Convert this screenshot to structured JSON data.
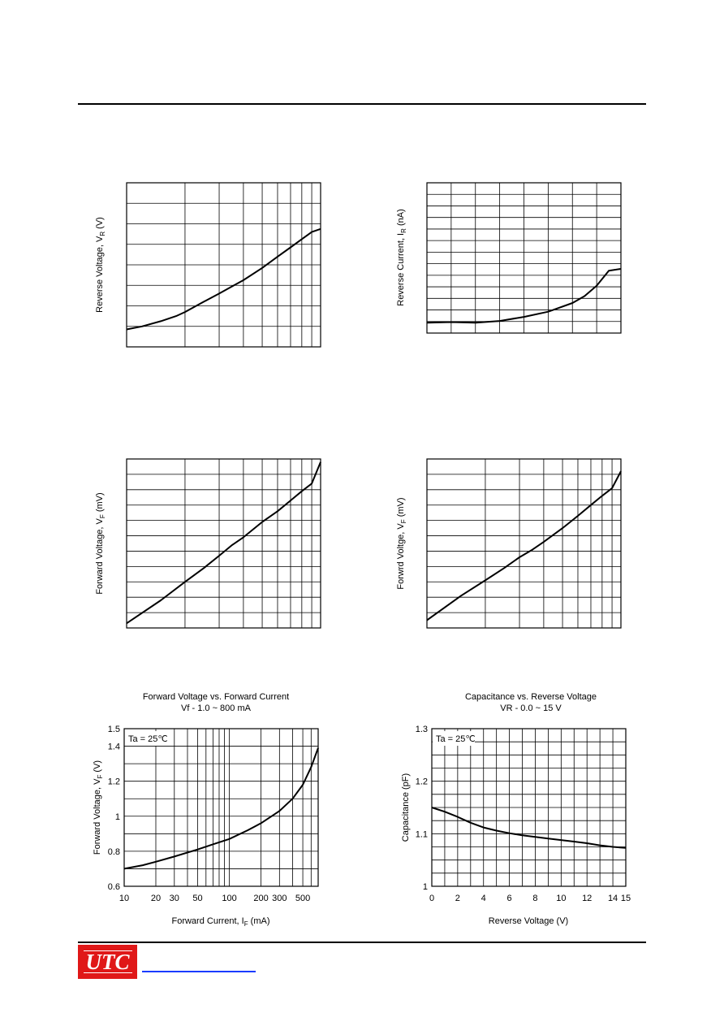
{
  "logo": {
    "text": "UTC"
  },
  "chart_data": [
    {
      "type": "line",
      "title": "",
      "subtitle": "",
      "xlabel": "",
      "ylabel": "Reverse Voltage, VR (V)",
      "ylabel_main": "Reverse Voltage, V",
      "ylabel_sub": "R",
      "ylabel_unit": " (V)",
      "xscale": "log",
      "xlim": [
        1,
        10
      ],
      "ylim": [
        0,
        8
      ],
      "xgrid": [
        1,
        2,
        3,
        4,
        5,
        6,
        7,
        8,
        9,
        10
      ],
      "ygrid": [
        0,
        1,
        2,
        3,
        4,
        5,
        6,
        7,
        8
      ],
      "grid": true,
      "series": [
        {
          "x": [
            1,
            1.2,
            1.5,
            1.8,
            2,
            2.5,
            3,
            3.5,
            4,
            5,
            6,
            7,
            8,
            9,
            10
          ],
          "y": [
            0.85,
            1.0,
            1.25,
            1.5,
            1.7,
            2.2,
            2.6,
            2.95,
            3.25,
            3.85,
            4.4,
            4.85,
            5.25,
            5.6,
            5.75
          ]
        }
      ]
    },
    {
      "type": "line",
      "title": "",
      "subtitle": "",
      "xlabel": "",
      "ylabel": "Reverse Current, IR (nA)",
      "ylabel_main": "Reverse Current, I",
      "ylabel_sub": "R",
      "ylabel_unit": " (nA)",
      "xscale": "linear",
      "xlim": [
        0,
        8
      ],
      "ylim": [
        0,
        13
      ],
      "xgrid": [
        0,
        1,
        2,
        3,
        4,
        5,
        6,
        7,
        8
      ],
      "ygrid": [
        0,
        1,
        2,
        3,
        4,
        5,
        6,
        7,
        8,
        9,
        10,
        11,
        12,
        13
      ],
      "grid": true,
      "series": [
        {
          "x": [
            0,
            1,
            2,
            3,
            4,
            5,
            6,
            6.5,
            7,
            7.5,
            8
          ],
          "y": [
            0.9,
            0.95,
            0.9,
            1.05,
            1.4,
            1.85,
            2.6,
            3.2,
            4.1,
            5.4,
            5.55
          ]
        }
      ]
    },
    {
      "type": "line",
      "title": "",
      "subtitle": "",
      "xlabel": "",
      "ylabel": "Forward Voltage, VF (mV)",
      "ylabel_main": "Forward Voltage, V",
      "ylabel_sub": "F",
      "ylabel_unit": " (mV)",
      "xscale": "log",
      "xlim": [
        1,
        10
      ],
      "ylim": [
        0,
        11
      ],
      "xgrid": [
        1,
        2,
        3,
        4,
        5,
        6,
        7,
        8,
        9,
        10
      ],
      "ygrid": [
        0,
        1,
        2,
        3,
        4,
        5,
        6,
        7,
        8,
        9,
        10,
        11
      ],
      "grid": true,
      "series": [
        {
          "x": [
            1,
            1.5,
            2,
            2.5,
            3,
            3.5,
            4,
            5,
            6,
            7,
            8,
            9,
            10
          ],
          "y": [
            0.3,
            1.8,
            3.0,
            3.9,
            4.7,
            5.4,
            5.9,
            6.9,
            7.6,
            8.3,
            8.9,
            9.4,
            10.8
          ]
        }
      ]
    },
    {
      "type": "line",
      "title": "",
      "subtitle": "",
      "xlabel": "",
      "ylabel": "Forwrd Voltge, VF (mV)",
      "ylabel_main": "Forwrd Voltge, V",
      "ylabel_sub": "F",
      "ylabel_unit": " (mV)",
      "xscale": "log",
      "xlim": [
        1,
        10
      ],
      "ylim": [
        0,
        11
      ],
      "xgrid": [
        1,
        2,
        3,
        4,
        5,
        6,
        7,
        8,
        9,
        10
      ],
      "ygrid": [
        0,
        1,
        2,
        3,
        4,
        5,
        6,
        7,
        8,
        9,
        10,
        11
      ],
      "grid": true,
      "series": [
        {
          "x": [
            1,
            1.5,
            2,
            2.5,
            3,
            3.5,
            4,
            5,
            6,
            7,
            8,
            9,
            10
          ],
          "y": [
            0.5,
            2.1,
            3.1,
            3.9,
            4.6,
            5.1,
            5.6,
            6.5,
            7.3,
            8.0,
            8.6,
            9.1,
            10.2
          ]
        }
      ]
    },
    {
      "type": "line",
      "title": "Forward Voltage vs. Forward Current",
      "subtitle": "Vf - 1.0 ~ 800 mA",
      "xlabel": "Forward Current, IF (mA)",
      "ylabel": "Forward Voltage, VF (V)",
      "xlabel_main": "Forward Current, I",
      "xlabel_sub": "F",
      "xlabel_unit": " (mA)",
      "ylabel_main": "Forward Voltage, V",
      "ylabel_sub": "F",
      "ylabel_unit": " (V)",
      "annotation": "Ta = 25℃",
      "xscale": "log",
      "xlim": [
        10,
        700
      ],
      "ylim": [
        0.6,
        1.5
      ],
      "xticks": [
        10,
        20,
        30,
        50,
        100,
        200,
        300,
        500
      ],
      "xtick_labels": [
        "10",
        "20",
        "30",
        "50",
        "100",
        "200",
        "300",
        "500"
      ],
      "yticks": [
        0.6,
        0.8,
        1.0,
        1.2,
        1.4,
        1.5
      ],
      "ytick_labels": [
        "0.6",
        "0.8",
        "1",
        "1.2",
        "1.4",
        "1.5"
      ],
      "xgrid": [
        10,
        20,
        30,
        40,
        50,
        60,
        70,
        80,
        90,
        100,
        200,
        300,
        400,
        500,
        600,
        700
      ],
      "ygrid": [
        0.6,
        0.7,
        0.8,
        0.9,
        1.0,
        1.1,
        1.2,
        1.3,
        1.4,
        1.5
      ],
      "grid": true,
      "series": [
        {
          "x": [
            10,
            15,
            20,
            30,
            50,
            70,
            100,
            150,
            200,
            300,
            400,
            500,
            600,
            700
          ],
          "y": [
            0.7,
            0.72,
            0.74,
            0.77,
            0.81,
            0.84,
            0.87,
            0.92,
            0.96,
            1.03,
            1.1,
            1.18,
            1.28,
            1.39
          ]
        }
      ]
    },
    {
      "type": "line",
      "title": "Capacitance vs. Reverse Voltage",
      "subtitle": "VR - 0.0 ~ 15 V",
      "xlabel": "Reverse Voltage (V)",
      "ylabel": "Capacitance (pF)",
      "annotation": "Ta = 25℃",
      "xscale": "linear",
      "xlim": [
        0,
        15
      ],
      "ylim": [
        1.0,
        1.3
      ],
      "xticks": [
        0,
        2,
        4,
        6,
        8,
        10,
        12,
        14,
        15
      ],
      "xtick_labels": [
        "0",
        "2",
        "4",
        "6",
        "8",
        "10",
        "12",
        "14",
        "15"
      ],
      "yticks": [
        1.0,
        1.1,
        1.2,
        1.3
      ],
      "ytick_labels": [
        "1",
        "1.1",
        "1.2",
        "1.3"
      ],
      "xgrid": [
        0,
        1,
        2,
        3,
        4,
        5,
        6,
        7,
        8,
        9,
        10,
        11,
        12,
        13,
        14,
        15
      ],
      "ygrid": [
        1.0,
        1.025,
        1.05,
        1.075,
        1.1,
        1.125,
        1.15,
        1.175,
        1.2,
        1.225,
        1.25,
        1.275,
        1.3
      ],
      "grid": true,
      "series": [
        {
          "x": [
            0,
            1,
            2,
            3,
            4,
            5,
            6,
            7,
            8,
            9,
            10,
            11,
            12,
            13,
            14,
            15
          ],
          "y": [
            1.15,
            1.142,
            1.132,
            1.121,
            1.112,
            1.106,
            1.101,
            1.097,
            1.094,
            1.091,
            1.088,
            1.085,
            1.082,
            1.078,
            1.075,
            1.073
          ]
        }
      ]
    }
  ]
}
